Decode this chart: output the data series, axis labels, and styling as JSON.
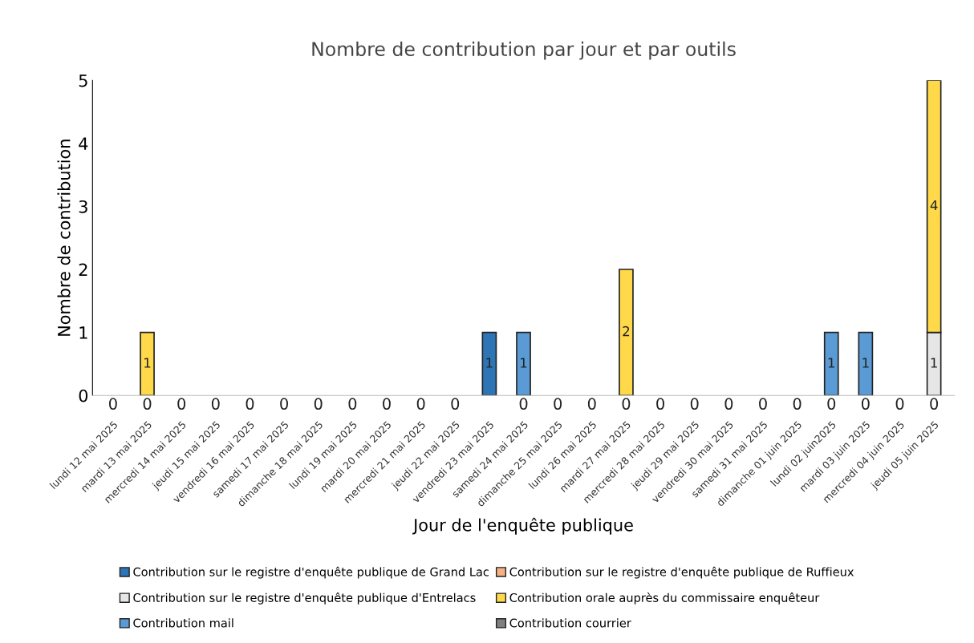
{
  "chart_data": {
    "type": "bar",
    "stacked": true,
    "title": "Nombre de contribution par jour et par outils",
    "xlabel": "Jour de l'enquête publique",
    "ylabel": "Nombre de contribution",
    "categories": [
      "lundi 12 mai 2025",
      "mardi 13 mai 2025",
      "mercredi 14 mai 2025",
      "jeudi 15 mai 2025",
      "vendredi 16 mai 2025",
      "samedi 17 mai 2025",
      "dimanche 18 mai 2025",
      "lundi 19 mai 2025",
      "mardi 20 mai 2025",
      "mercredi 21 mai 2025",
      "jeudi 22 mai 2025",
      "vendredi 23 mai 2025",
      "samedi 24 mai 2025",
      "dimanche 25 mai 2025",
      "lundi 26 mai 2025",
      "mardi 27 mai 2025",
      "mercredi 28 mai 2025",
      "jeudi 29 mai 2025",
      "vendredi 30 mai 2025",
      "samedi 31 mai 2025",
      "dimanche 01 juin 2025",
      "lundi 02 juin2025",
      "mardi 03 juin 2025",
      "mercredi 04 juin 2025",
      "jeudi 05 juin 2025"
    ],
    "series": [
      {
        "name": "Contribution sur le registre d'enquête publique de Grand Lac",
        "color": "#2e75b6",
        "values": [
          0,
          0,
          0,
          0,
          0,
          0,
          0,
          0,
          0,
          0,
          0,
          1,
          0,
          0,
          0,
          0,
          0,
          0,
          0,
          0,
          0,
          0,
          0,
          0,
          0
        ],
        "value_labels": [
          "0",
          null,
          "0",
          "0",
          "0",
          "0",
          "0",
          "0",
          "0",
          "0",
          "0",
          "1",
          null,
          "0",
          "0",
          null,
          "0",
          "0",
          "0",
          "0",
          "0",
          null,
          null,
          "0",
          null
        ]
      },
      {
        "name": "Contribution sur le registre d'enquête publique de Ruffieux",
        "color": "#f4b183",
        "values": [
          0,
          0,
          0,
          0,
          0,
          0,
          0,
          0,
          0,
          0,
          0,
          0,
          0,
          0,
          0,
          0,
          0,
          0,
          0,
          0,
          0,
          0,
          0,
          0,
          0
        ]
      },
      {
        "name": "Contribution sur le registre d'enquête publique d'Entrelacs",
        "color": "#e7e6e6",
        "values": [
          0,
          0,
          0,
          0,
          0,
          0,
          0,
          0,
          0,
          0,
          0,
          0,
          0,
          0,
          0,
          0,
          0,
          0,
          0,
          0,
          0,
          0,
          0,
          0,
          1
        ],
        "value_labels": [
          null,
          null,
          null,
          null,
          null,
          null,
          null,
          null,
          null,
          null,
          null,
          null,
          null,
          null,
          null,
          null,
          null,
          null,
          null,
          null,
          null,
          null,
          null,
          null,
          "1"
        ]
      },
      {
        "name": "Contribution orale auprès du commissaire enquêteur",
        "color": "#ffd94a",
        "values": [
          0,
          1,
          0,
          0,
          0,
          0,
          0,
          0,
          0,
          0,
          0,
          0,
          0,
          0,
          0,
          2,
          0,
          0,
          0,
          0,
          0,
          0,
          0,
          0,
          4
        ],
        "value_labels": [
          null,
          "1",
          null,
          null,
          null,
          null,
          null,
          null,
          null,
          null,
          null,
          null,
          null,
          null,
          null,
          "2",
          null,
          null,
          null,
          null,
          null,
          null,
          null,
          null,
          "4"
        ]
      },
      {
        "name": "Contribution mail",
        "color": "#5b9bd5",
        "values": [
          0,
          0,
          0,
          0,
          0,
          0,
          0,
          0,
          0,
          0,
          0,
          0,
          1,
          0,
          0,
          0,
          0,
          0,
          0,
          0,
          0,
          1,
          1,
          0,
          0
        ],
        "value_labels": [
          null,
          null,
          null,
          null,
          null,
          null,
          null,
          null,
          null,
          null,
          null,
          null,
          "1",
          null,
          null,
          null,
          null,
          null,
          null,
          null,
          null,
          "1",
          "1",
          null,
          null
        ]
      },
      {
        "name": "Contribution courrier",
        "color": "#7f7f7f",
        "values": [
          0,
          0,
          0,
          0,
          0,
          0,
          0,
          0,
          0,
          0,
          0,
          0,
          0,
          0,
          0,
          0,
          0,
          0,
          0,
          0,
          0,
          0,
          0,
          0,
          0
        ]
      }
    ],
    "annotations": [
      {
        "text": "0",
        "x": "mardi 13 mai 2025",
        "y": 0
      },
      {
        "text": "0",
        "x": "samedi 24 mai 2025",
        "y": 0
      },
      {
        "text": "0",
        "x": "mardi 27 mai 2025",
        "y": 0
      },
      {
        "text": "0",
        "x": "lundi 02 juin2025",
        "y": 0
      },
      {
        "text": "0",
        "x": "mardi 03 juin 2025",
        "y": 0
      },
      {
        "text": "0",
        "x": "jeudi 05 juin 2025",
        "y": 0
      }
    ],
    "ylim": [
      0,
      5
    ],
    "yticks": [
      0,
      1,
      2,
      3,
      4,
      5
    ],
    "grid": false,
    "legend": "bottom"
  }
}
